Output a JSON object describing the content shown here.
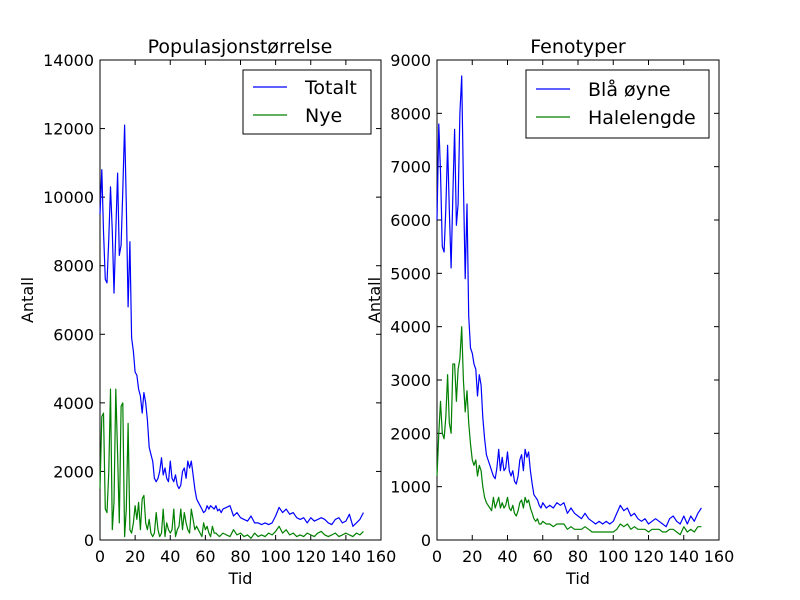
{
  "chart_data": [
    {
      "type": "line",
      "title": "Populasjonstørrelse",
      "xlabel": "Tid",
      "ylabel": "Antall",
      "xlim": [
        0,
        160
      ],
      "ylim": [
        0,
        14000
      ],
      "xticks": [
        0,
        20,
        40,
        60,
        80,
        100,
        120,
        140,
        160
      ],
      "yticks": [
        0,
        2000,
        4000,
        6000,
        8000,
        10000,
        12000,
        14000
      ],
      "grid": false,
      "legend_position": "top-right",
      "series": [
        {
          "name": "Totalt",
          "color": "#0000ff",
          "x": [
            0,
            1,
            2,
            3,
            4,
            5,
            6,
            7,
            8,
            9,
            10,
            11,
            12,
            13,
            14,
            15,
            16,
            17,
            18,
            19,
            20,
            21,
            22,
            23,
            24,
            25,
            26,
            27,
            28,
            29,
            30,
            31,
            32,
            33,
            34,
            35,
            36,
            37,
            38,
            39,
            40,
            41,
            42,
            43,
            44,
            45,
            46,
            47,
            48,
            49,
            50,
            51,
            52,
            53,
            54,
            55,
            56,
            57,
            58,
            59,
            60,
            61,
            62,
            63,
            64,
            65,
            66,
            67,
            68,
            69,
            70,
            72,
            74,
            76,
            78,
            80,
            82,
            84,
            86,
            88,
            90,
            92,
            94,
            96,
            98,
            100,
            102,
            104,
            106,
            108,
            110,
            112,
            114,
            116,
            118,
            120,
            122,
            124,
            126,
            128,
            130,
            132,
            134,
            136,
            138,
            140,
            142,
            144,
            146,
            148,
            150
          ],
          "values": [
            9500,
            10800,
            9000,
            7600,
            7500,
            8800,
            10300,
            9000,
            7200,
            9000,
            10700,
            8300,
            8600,
            10200,
            12100,
            9800,
            6800,
            8700,
            5900,
            5500,
            4900,
            4800,
            4400,
            4200,
            3700,
            4300,
            4000,
            3500,
            2700,
            2500,
            2300,
            1800,
            1700,
            1800,
            2000,
            2400,
            1900,
            2100,
            1800,
            1700,
            2300,
            1800,
            1700,
            1900,
            1600,
            1500,
            1600,
            2000,
            2100,
            1800,
            2300,
            2100,
            2300,
            1900,
            1500,
            1200,
            1100,
            1000,
            900,
            800,
            850,
            1000,
            900,
            1000,
            950,
            900,
            1000,
            850,
            900,
            800,
            900,
            950,
            1000,
            700,
            800,
            650,
            600,
            550,
            700,
            500,
            500,
            450,
            500,
            450,
            500,
            700,
            950,
            800,
            900,
            750,
            800,
            650,
            600,
            650,
            500,
            650,
            550,
            600,
            650,
            600,
            500,
            450,
            600,
            650,
            500,
            550,
            750,
            400,
            500,
            600,
            800
          ]
        },
        {
          "name": "Nye",
          "color": "#008000",
          "x": [
            0,
            1,
            2,
            3,
            4,
            5,
            6,
            7,
            8,
            9,
            10,
            11,
            12,
            13,
            14,
            15,
            16,
            17,
            18,
            19,
            20,
            21,
            22,
            23,
            24,
            25,
            26,
            27,
            28,
            29,
            30,
            31,
            32,
            33,
            34,
            35,
            36,
            37,
            38,
            39,
            40,
            41,
            42,
            43,
            44,
            45,
            46,
            47,
            48,
            49,
            50,
            51,
            52,
            53,
            54,
            55,
            56,
            57,
            58,
            59,
            60,
            61,
            62,
            63,
            64,
            65,
            66,
            67,
            68,
            69,
            70,
            72,
            74,
            76,
            78,
            80,
            82,
            84,
            86,
            88,
            90,
            92,
            94,
            96,
            98,
            100,
            102,
            104,
            106,
            108,
            110,
            112,
            114,
            116,
            118,
            120,
            122,
            124,
            126,
            128,
            130,
            132,
            134,
            136,
            138,
            140,
            142,
            144,
            146,
            148,
            150
          ],
          "values": [
            1500,
            3600,
            3700,
            900,
            800,
            2000,
            4400,
            300,
            1100,
            4400,
            2500,
            500,
            3900,
            4000,
            100,
            900,
            3400,
            300,
            200,
            500,
            1000,
            600,
            1100,
            300,
            1200,
            1300,
            500,
            300,
            600,
            200,
            100,
            200,
            800,
            300,
            100,
            200,
            900,
            100,
            500,
            300,
            200,
            300,
            900,
            100,
            300,
            400,
            900,
            300,
            800,
            500,
            300,
            200,
            900,
            600,
            300,
            400,
            300,
            200,
            100,
            500,
            300,
            400,
            200,
            100,
            400,
            200,
            200,
            150,
            100,
            150,
            200,
            150,
            100,
            300,
            150,
            200,
            100,
            150,
            50,
            200,
            100,
            150,
            100,
            200,
            150,
            250,
            400,
            200,
            300,
            150,
            200,
            100,
            150,
            100,
            200,
            150,
            100,
            200,
            250,
            150,
            100,
            150,
            200,
            100,
            150,
            200,
            150,
            100,
            200,
            150,
            250
          ]
        }
      ]
    },
    {
      "type": "line",
      "title": "Fenotyper",
      "xlabel": "Tid",
      "ylabel": "Antall",
      "xlim": [
        0,
        160
      ],
      "ylim": [
        0,
        9000
      ],
      "xticks": [
        0,
        20,
        40,
        60,
        80,
        100,
        120,
        140,
        160
      ],
      "yticks": [
        0,
        1000,
        2000,
        3000,
        4000,
        5000,
        6000,
        7000,
        8000,
        9000
      ],
      "grid": false,
      "legend_position": "top-right",
      "series": [
        {
          "name": "Blå øyne",
          "color": "#0000ff",
          "x": [
            0,
            1,
            2,
            3,
            4,
            5,
            6,
            7,
            8,
            9,
            10,
            11,
            12,
            13,
            14,
            15,
            16,
            17,
            18,
            19,
            20,
            21,
            22,
            23,
            24,
            25,
            26,
            27,
            28,
            29,
            30,
            31,
            32,
            33,
            34,
            35,
            36,
            37,
            38,
            39,
            40,
            41,
            42,
            43,
            44,
            45,
            46,
            47,
            48,
            49,
            50,
            51,
            52,
            53,
            54,
            55,
            56,
            57,
            58,
            59,
            60,
            62,
            64,
            66,
            68,
            70,
            72,
            74,
            76,
            78,
            80,
            82,
            84,
            86,
            88,
            90,
            92,
            94,
            96,
            98,
            100,
            102,
            104,
            106,
            108,
            110,
            112,
            114,
            116,
            118,
            120,
            122,
            124,
            126,
            128,
            130,
            132,
            134,
            136,
            138,
            140,
            142,
            144,
            146,
            148,
            150
          ],
          "values": [
            6000,
            7800,
            6900,
            5500,
            5400,
            6200,
            7400,
            6200,
            5100,
            6500,
            7700,
            5900,
            6300,
            8000,
            8700,
            6700,
            4900,
            6300,
            4200,
            3600,
            3500,
            3300,
            3200,
            2700,
            3100,
            2900,
            2300,
            1900,
            1600,
            1500,
            1400,
            1300,
            1200,
            1150,
            1350,
            1700,
            1300,
            1550,
            1300,
            1350,
            1650,
            1300,
            1200,
            1300,
            1100,
            1050,
            1200,
            1500,
            1600,
            1300,
            1700,
            1550,
            1650,
            1300,
            1050,
            850,
            800,
            750,
            650,
            600,
            700,
            600,
            650,
            600,
            700,
            650,
            700,
            500,
            600,
            500,
            450,
            400,
            500,
            400,
            350,
            300,
            350,
            300,
            350,
            300,
            350,
            500,
            650,
            550,
            600,
            450,
            500,
            400,
            350,
            400,
            300,
            350,
            400,
            350,
            300,
            250,
            400,
            450,
            350,
            300,
            450,
            300,
            450,
            350,
            500,
            600
          ]
        },
        {
          "name": "Halelengde",
          "color": "#008000",
          "x": [
            0,
            1,
            2,
            3,
            4,
            5,
            6,
            7,
            8,
            9,
            10,
            11,
            12,
            13,
            14,
            15,
            16,
            17,
            18,
            19,
            20,
            21,
            22,
            23,
            24,
            25,
            26,
            27,
            28,
            29,
            30,
            31,
            32,
            33,
            34,
            35,
            36,
            37,
            38,
            39,
            40,
            41,
            42,
            43,
            44,
            45,
            46,
            47,
            48,
            49,
            50,
            51,
            52,
            53,
            54,
            55,
            56,
            57,
            58,
            59,
            60,
            62,
            64,
            66,
            68,
            70,
            72,
            74,
            76,
            78,
            80,
            82,
            84,
            86,
            88,
            90,
            92,
            94,
            96,
            98,
            100,
            102,
            104,
            106,
            108,
            110,
            112,
            114,
            116,
            118,
            120,
            122,
            124,
            126,
            128,
            130,
            132,
            134,
            136,
            138,
            140,
            142,
            144,
            146,
            148,
            150
          ],
          "values": [
            1200,
            2000,
            2600,
            2000,
            1900,
            2300,
            3100,
            2200,
            2000,
            3300,
            3300,
            2600,
            3200,
            3400,
            4000,
            3000,
            2400,
            2800,
            2200,
            1800,
            1500,
            1400,
            1500,
            1200,
            1400,
            1300,
            1000,
            800,
            700,
            650,
            600,
            550,
            800,
            600,
            700,
            800,
            600,
            700,
            600,
            650,
            800,
            600,
            550,
            650,
            500,
            450,
            550,
            700,
            750,
            600,
            800,
            700,
            750,
            600,
            500,
            400,
            350,
            400,
            300,
            300,
            350,
            300,
            300,
            250,
            300,
            300,
            300,
            200,
            250,
            200,
            200,
            200,
            250,
            200,
            150,
            150,
            150,
            150,
            150,
            150,
            150,
            200,
            300,
            250,
            300,
            200,
            250,
            200,
            200,
            200,
            150,
            200,
            200,
            200,
            150,
            150,
            200,
            200,
            150,
            100,
            250,
            150,
            200,
            150,
            250,
            250
          ]
        }
      ]
    }
  ]
}
